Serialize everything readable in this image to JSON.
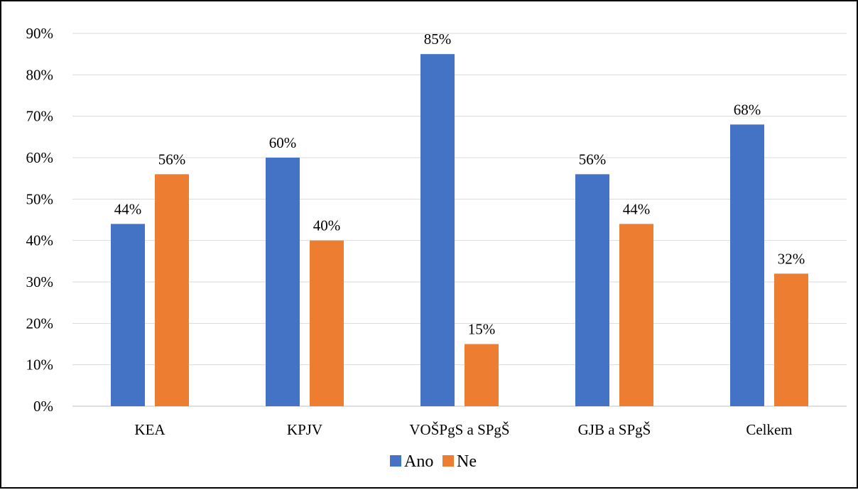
{
  "chart_data": {
    "type": "bar",
    "categories": [
      "KEA",
      "KPJV",
      "VOŠPgS a SPgŠ",
      "GJB a SPgŠ",
      "Celkem"
    ],
    "series": [
      {
        "name": "Ano",
        "values": [
          44,
          60,
          85,
          56,
          68
        ],
        "color": "#4472C4"
      },
      {
        "name": "Ne",
        "values": [
          56,
          40,
          15,
          44,
          32
        ],
        "color": "#ED7D31"
      }
    ],
    "data_labels": [
      [
        "44%",
        "60%",
        "85%",
        "56%",
        "68%"
      ],
      [
        "56%",
        "40%",
        "15%",
        "44%",
        "32%"
      ]
    ],
    "y_ticks": [
      "0%",
      "10%",
      "20%",
      "30%",
      "40%",
      "50%",
      "60%",
      "70%",
      "80%",
      "90%"
    ],
    "ylim": [
      0,
      90
    ],
    "grid": true,
    "legend_position": "bottom",
    "title": "",
    "xlabel": "",
    "ylabel": ""
  }
}
